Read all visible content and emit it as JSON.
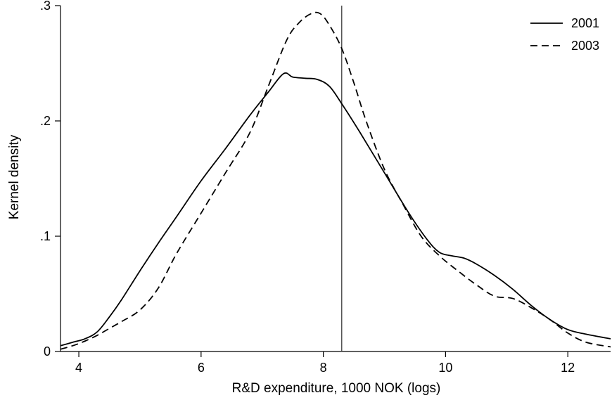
{
  "chart_data": {
    "type": "line",
    "title": "",
    "xlabel": "R&D expenditure, 1000 NOK (logs)",
    "ylabel": "Kernel density",
    "xlim": [
      3.7,
      12.7
    ],
    "ylim": [
      0,
      0.3
    ],
    "xticks": [
      4,
      6,
      8,
      10,
      12
    ],
    "xtick_labels": [
      "4",
      "6",
      "8",
      "10",
      "12"
    ],
    "yticks": [
      0,
      0.1,
      0.2,
      0.3
    ],
    "ytick_labels": [
      "0",
      ".1",
      ".2",
      ".3"
    ],
    "grid": false,
    "legend_position": "top-right",
    "reference_line_x": 8.3,
    "colors": {
      "line": "#000000",
      "reference": "#555555"
    },
    "series": [
      {
        "name": "2001",
        "style": "solid",
        "x": [
          3.7,
          3.9,
          4.1,
          4.3,
          4.5,
          4.7,
          5.0,
          5.3,
          5.6,
          6.0,
          6.4,
          6.8,
          7.1,
          7.35,
          7.5,
          7.7,
          7.9,
          8.1,
          8.3,
          8.6,
          9.0,
          9.4,
          9.7,
          9.9,
          10.1,
          10.3,
          10.5,
          10.8,
          11.1,
          11.4,
          11.7,
          12.0,
          12.3,
          12.7
        ],
        "y": [
          0.005,
          0.008,
          0.011,
          0.017,
          0.03,
          0.045,
          0.07,
          0.094,
          0.117,
          0.148,
          0.176,
          0.205,
          0.225,
          0.241,
          0.238,
          0.237,
          0.236,
          0.23,
          0.215,
          0.19,
          0.155,
          0.12,
          0.097,
          0.086,
          0.083,
          0.081,
          0.076,
          0.066,
          0.054,
          0.04,
          0.028,
          0.019,
          0.015,
          0.011
        ]
      },
      {
        "name": "2003",
        "style": "dashed",
        "x": [
          3.7,
          3.9,
          4.1,
          4.3,
          4.5,
          4.7,
          5.0,
          5.3,
          5.6,
          6.0,
          6.4,
          6.8,
          7.1,
          7.4,
          7.6,
          7.8,
          7.95,
          8.1,
          8.3,
          8.5,
          8.7,
          9.0,
          9.3,
          9.6,
          9.9,
          10.2,
          10.5,
          10.8,
          11.1,
          11.4,
          11.7,
          12.0,
          12.3,
          12.7
        ],
        "y": [
          0.002,
          0.005,
          0.009,
          0.014,
          0.02,
          0.026,
          0.036,
          0.055,
          0.085,
          0.12,
          0.155,
          0.19,
          0.23,
          0.27,
          0.285,
          0.293,
          0.293,
          0.283,
          0.263,
          0.233,
          0.2,
          0.158,
          0.128,
          0.1,
          0.083,
          0.07,
          0.058,
          0.048,
          0.046,
          0.038,
          0.028,
          0.016,
          0.008,
          0.004
        ]
      }
    ]
  }
}
